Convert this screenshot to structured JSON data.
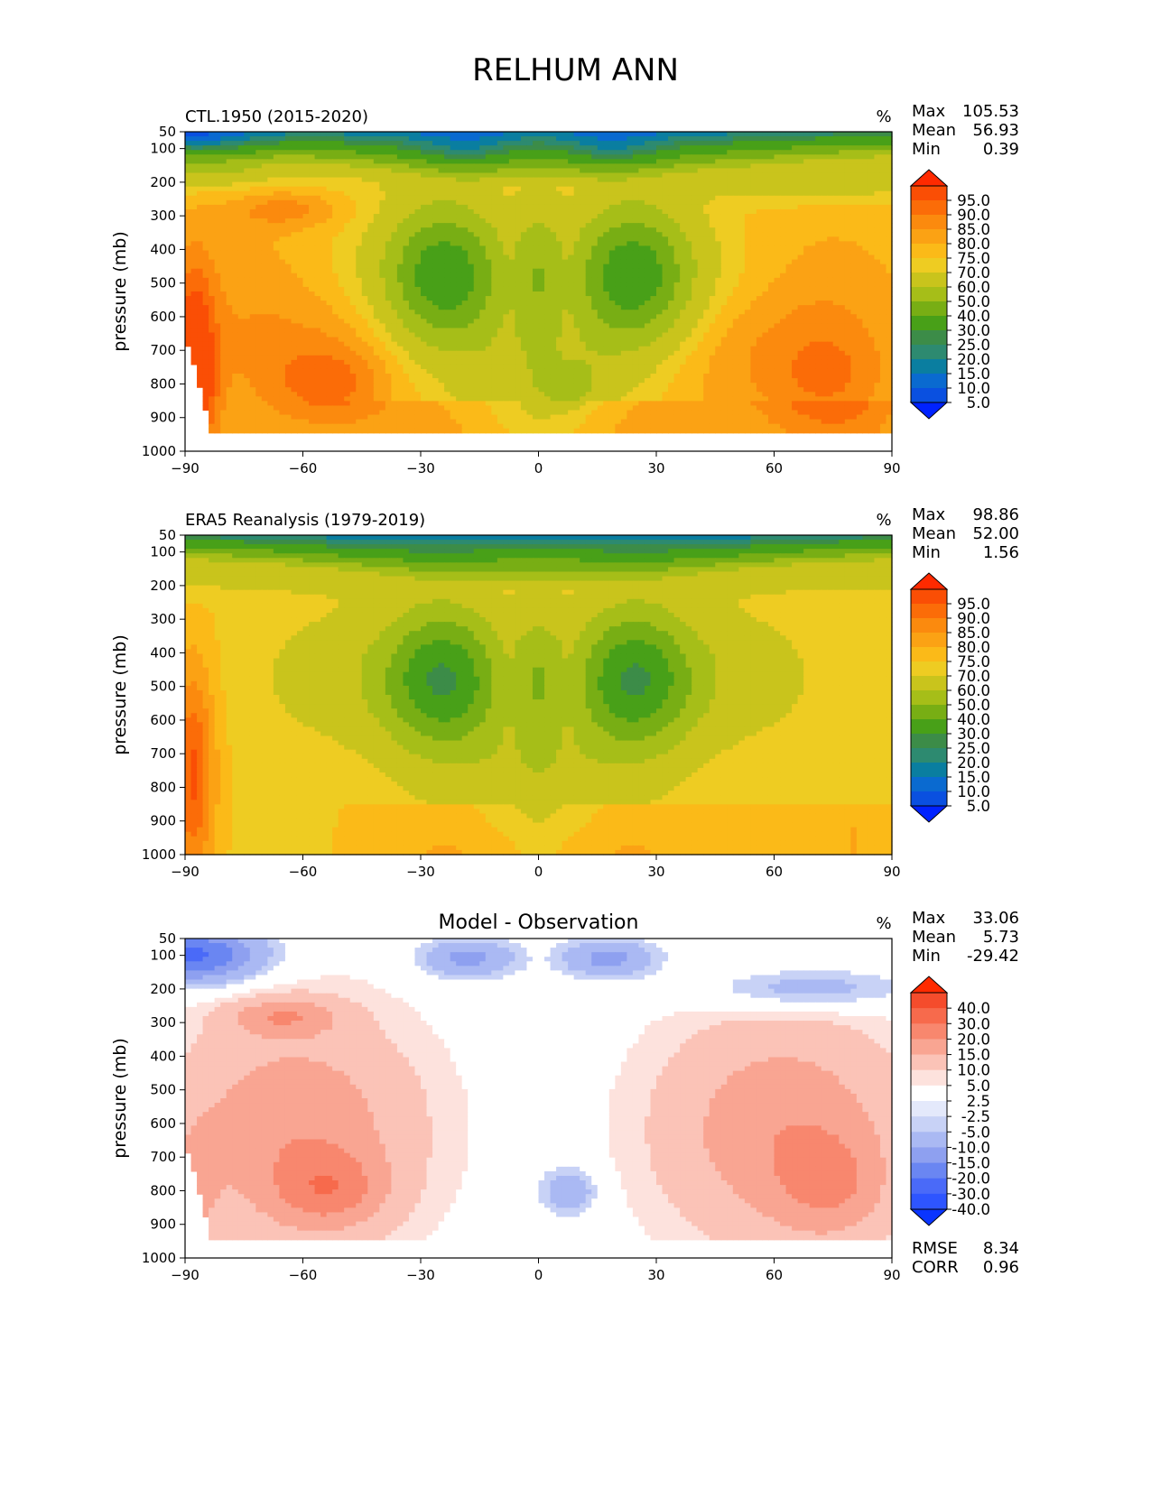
{
  "title": "RELHUM ANN",
  "chart_data": [
    {
      "type": "heatmap",
      "title": "CTL.1950 (2015-2020)",
      "units": "%",
      "ylabel": "pressure (mb)",
      "xlim": [
        -90,
        90
      ],
      "ylim": [
        1000,
        50
      ],
      "xticks": [
        -90,
        -60,
        -30,
        0,
        30,
        60,
        90
      ],
      "xtick_labels": [
        "−90",
        "−60",
        "−30",
        "0",
        "30",
        "60",
        "90"
      ],
      "yticks": [
        50,
        100,
        200,
        300,
        400,
        500,
        600,
        700,
        800,
        900,
        1000
      ],
      "stats": [
        {
          "label": "Max",
          "value": "105.53"
        },
        {
          "label": "Mean",
          "value": "56.93"
        },
        {
          "label": "Min",
          "value": "0.39"
        }
      ],
      "colorbar": {
        "labels": [
          "95.0",
          "90.0",
          "85.0",
          "80.0",
          "75.0",
          "70.0",
          "60.0",
          "50.0",
          "40.0",
          "30.0",
          "25.0",
          "20.0",
          "15.0",
          "10.0",
          "5.0"
        ],
        "colors": [
          "#0022ff",
          "#0a50e0",
          "#0a6ad0",
          "#0a7ea0",
          "#2d8a70",
          "#3c8c48",
          "#48a018",
          "#78ae14",
          "#a6be18",
          "#c9c41c",
          "#eecc22",
          "#fbba18",
          "#fba214",
          "#fb8a0e",
          "#fb6c08",
          "#fa4e05",
          "#ff2a00"
        ]
      },
      "field_model": "ctl"
    },
    {
      "type": "heatmap",
      "title": "ERA5 Reanalysis (1979-2019)",
      "units": "%",
      "ylabel": "pressure (mb)",
      "xlim": [
        -90,
        90
      ],
      "ylim": [
        1000,
        50
      ],
      "xticks": [
        -90,
        -60,
        -30,
        0,
        30,
        60,
        90
      ],
      "xtick_labels": [
        "−90",
        "−60",
        "−30",
        "0",
        "30",
        "60",
        "90"
      ],
      "yticks": [
        50,
        100,
        200,
        300,
        400,
        500,
        600,
        700,
        800,
        900,
        1000
      ],
      "stats": [
        {
          "label": "Max",
          "value": "98.86"
        },
        {
          "label": "Mean",
          "value": "52.00"
        },
        {
          "label": "Min",
          "value": "1.56"
        }
      ],
      "colorbar": {
        "labels": [
          "95.0",
          "90.0",
          "85.0",
          "80.0",
          "75.0",
          "70.0",
          "60.0",
          "50.0",
          "40.0",
          "30.0",
          "25.0",
          "20.0",
          "15.0",
          "10.0",
          "5.0"
        ],
        "colors": [
          "#0022ff",
          "#0a50e0",
          "#0a6ad0",
          "#0a7ea0",
          "#2d8a70",
          "#3c8c48",
          "#48a018",
          "#78ae14",
          "#a6be18",
          "#c9c41c",
          "#eecc22",
          "#fbba18",
          "#fba214",
          "#fb8a0e",
          "#fb6c08",
          "#fa4e05",
          "#ff2a00"
        ]
      },
      "field_model": "obs"
    },
    {
      "type": "heatmap",
      "title": "Model - Observation",
      "units": "%",
      "ylabel": "pressure (mb)",
      "xlim": [
        -90,
        90
      ],
      "ylim": [
        1000,
        50
      ],
      "xticks": [
        -90,
        -60,
        -30,
        0,
        30,
        60,
        90
      ],
      "xtick_labels": [
        "−90",
        "−60",
        "−30",
        "0",
        "30",
        "60",
        "90"
      ],
      "yticks": [
        50,
        100,
        200,
        300,
        400,
        500,
        600,
        700,
        800,
        900,
        1000
      ],
      "stats": [
        {
          "label": "Max",
          "value": "33.06"
        },
        {
          "label": "Mean",
          "value": "5.73"
        },
        {
          "label": "Min",
          "value": "-29.42"
        }
      ],
      "extra_stats": [
        {
          "label": "RMSE",
          "value": "8.34"
        },
        {
          "label": "CORR",
          "value": "0.96"
        }
      ],
      "colorbar": {
        "labels": [
          "40.0",
          "30.0",
          "20.0",
          "15.0",
          "10.0",
          "5.0",
          "2.5",
          "-2.5",
          "-5.0",
          "-10.0",
          "-15.0",
          "-20.0",
          "-30.0",
          "-40.0"
        ],
        "colors": [
          "#0a35ff",
          "#2e55ff",
          "#4a6af8",
          "#6a86f2",
          "#8ea0f0",
          "#aab9f3",
          "#c8d2f6",
          "#e4e9fb",
          "#ffffff",
          "#fde2dd",
          "#fbc3b7",
          "#f9a592",
          "#f8876e",
          "#f76a4c",
          "#f54c2c",
          "#ff2a00"
        ]
      },
      "field_model": "diff"
    }
  ]
}
